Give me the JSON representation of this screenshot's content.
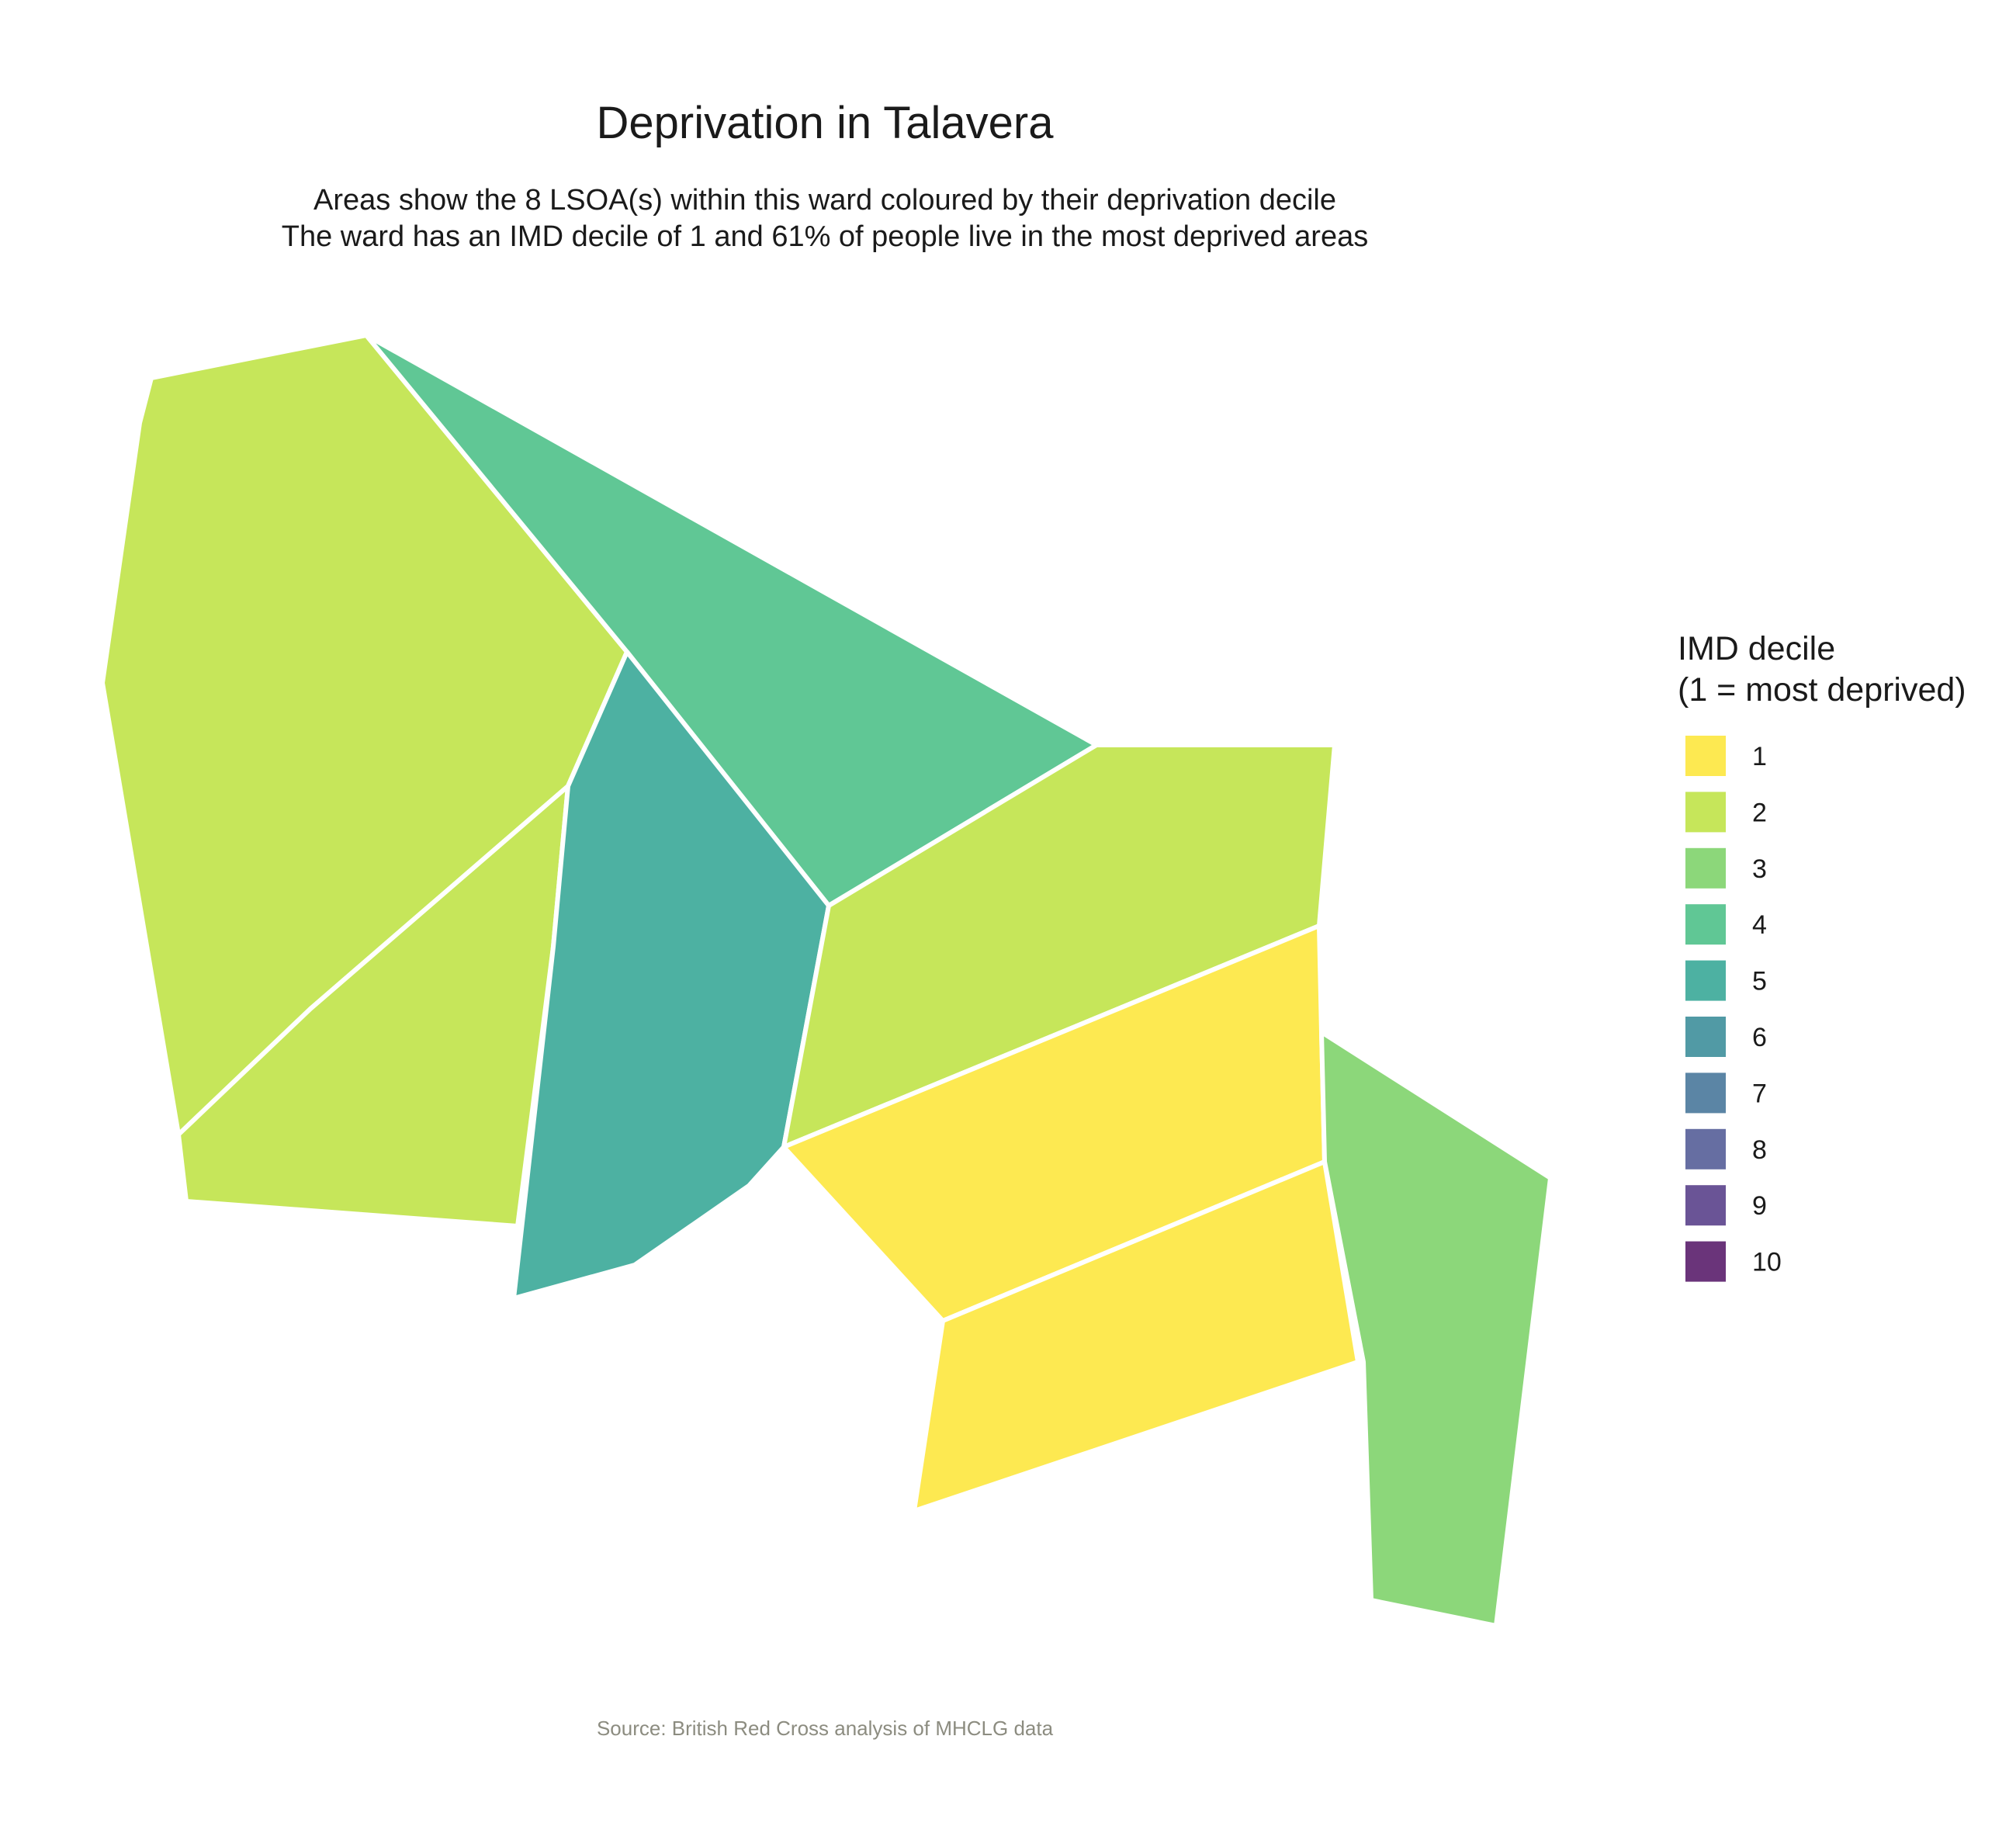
{
  "header": {
    "title": "Deprivation in Talavera",
    "subtitle_line1": "Areas show the 8 LSOA(s) within this ward coloured by their deprivation decile",
    "subtitle_line2": "The ward has an IMD decile of 1 and 61% of people live in the most deprived areas"
  },
  "legend": {
    "title_line1": "IMD decile",
    "title_line2": "(1 = most deprived)",
    "items": [
      {
        "label": "1",
        "color": "#FDE951"
      },
      {
        "label": "2",
        "color": "#C6E65A"
      },
      {
        "label": "3",
        "color": "#8CD77A"
      },
      {
        "label": "4",
        "color": "#60C795"
      },
      {
        "label": "5",
        "color": "#4DB1A2"
      },
      {
        "label": "6",
        "color": "#519AA5"
      },
      {
        "label": "7",
        "color": "#5B85A5"
      },
      {
        "label": "8",
        "color": "#666EA2"
      },
      {
        "label": "9",
        "color": "#6A5496"
      },
      {
        "label": "10",
        "color": "#6A347A"
      }
    ]
  },
  "caption": {
    "text": "Source: British Red Cross analysis of MHCLG data",
    "color": "#8c8c80"
  },
  "map": {
    "region_deciles": [
      2,
      4,
      2,
      5,
      2,
      1,
      1,
      3
    ]
  }
}
